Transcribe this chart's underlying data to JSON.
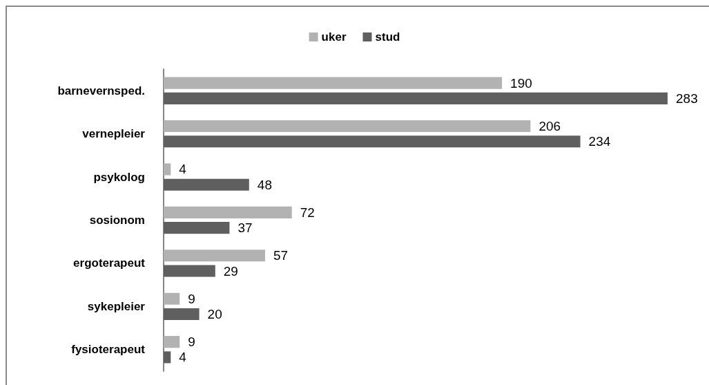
{
  "chart_data": {
    "type": "bar",
    "orientation": "horizontal",
    "categories": [
      "barnevernsped.",
      "vernepleier",
      "psykolog",
      "sosionom",
      "ergoterapeut",
      "sykepleier",
      "fysioterapeut"
    ],
    "series": [
      {
        "name": "uker",
        "color": "#b2b2b2",
        "values": [
          190,
          206,
          4,
          72,
          57,
          9,
          9
        ]
      },
      {
        "name": "stud",
        "color": "#5f5f5f",
        "values": [
          283,
          234,
          48,
          37,
          29,
          20,
          4
        ]
      }
    ],
    "data_labels": true,
    "legend": "top",
    "tick_labels": "y"
  }
}
